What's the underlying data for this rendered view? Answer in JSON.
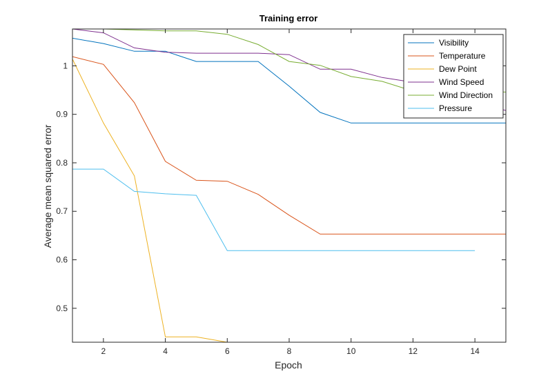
{
  "chart_data": {
    "type": "line",
    "title": "Training error",
    "xlabel": "Epoch",
    "ylabel": "Average mean squared error",
    "xlim": [
      1,
      15
    ],
    "ylim": [
      0.43,
      1.076
    ],
    "x_ticks": [
      2,
      4,
      6,
      8,
      10,
      12,
      14
    ],
    "y_ticks": [
      0.5,
      0.6,
      0.7,
      0.8,
      0.9,
      1
    ],
    "x_tick_labels": [
      "2",
      "4",
      "6",
      "8",
      "10",
      "12",
      "14"
    ],
    "y_tick_labels": [
      "0.5",
      "0.6",
      "0.7",
      "0.8",
      "0.9",
      "1"
    ],
    "grid": false,
    "legend_position": "top-right",
    "series": [
      {
        "name": "Visibility",
        "color": "#0072BD",
        "x": [
          1,
          2,
          3,
          4,
          5,
          6,
          7,
          8,
          9,
          10,
          11,
          12,
          13,
          14,
          15
        ],
        "y": [
          1.057,
          1.046,
          1.03,
          1.03,
          1.009,
          1.009,
          1.009,
          0.958,
          0.904,
          0.882,
          0.882,
          0.882,
          0.882,
          0.882,
          0.882
        ]
      },
      {
        "name": "Temperature",
        "color": "#D95319",
        "x": [
          1,
          2,
          3,
          4,
          5,
          6,
          7,
          8,
          9,
          10,
          11,
          12,
          13,
          14,
          15
        ],
        "y": [
          1.019,
          1.003,
          0.924,
          0.803,
          0.764,
          0.762,
          0.735,
          0.692,
          0.653,
          0.653,
          0.653,
          0.653,
          0.653,
          0.653,
          0.653
        ]
      },
      {
        "name": "Dew Point",
        "color": "#EDB120",
        "x": [
          1,
          2,
          3,
          4,
          5,
          6
        ],
        "y": [
          1.014,
          0.882,
          0.773,
          0.441,
          0.441,
          0.43
        ]
      },
      {
        "name": "Wind Speed",
        "color": "#7E2F8E",
        "x": [
          1,
          2,
          3,
          4,
          5,
          6,
          7,
          8,
          9,
          10,
          11,
          12,
          13,
          14,
          15
        ],
        "y": [
          1.076,
          1.068,
          1.037,
          1.028,
          1.026,
          1.026,
          1.026,
          1.023,
          0.993,
          0.993,
          0.976,
          0.966,
          0.945,
          0.925,
          0.908
        ]
      },
      {
        "name": "Wind Direction",
        "color": "#77AC30",
        "x": [
          1,
          2,
          3,
          4,
          5,
          6,
          7,
          8,
          9,
          10,
          11,
          12,
          13,
          14,
          15
        ],
        "y": [
          1.076,
          1.076,
          1.074,
          1.072,
          1.072,
          1.065,
          1.044,
          1.009,
          1.001,
          0.978,
          0.968,
          0.948,
          0.946,
          0.946,
          0.946
        ]
      },
      {
        "name": "Pressure",
        "color": "#4DBEEE",
        "x": [
          1,
          2,
          3,
          4,
          5,
          6,
          7,
          8,
          9,
          10,
          11,
          12,
          13,
          14
        ],
        "y": [
          0.787,
          0.787,
          0.741,
          0.736,
          0.733,
          0.619,
          0.619,
          0.619,
          0.619,
          0.619,
          0.619,
          0.619,
          0.619,
          0.619
        ]
      }
    ]
  }
}
